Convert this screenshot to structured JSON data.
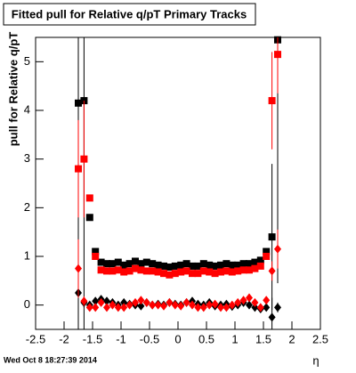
{
  "chart_data": {
    "type": "scatter",
    "title": "Fitted pull for Relative q/pT  Primary Tracks",
    "y_label": "pull for Relative q/pT",
    "x_label": "η",
    "timestamp": "Wed Oct  8 18:27:39 2014",
    "xlim": [
      -2.5,
      2.5
    ],
    "ylim": [
      -0.5,
      5.5
    ],
    "xticks": [
      -2.5,
      -2,
      -1.5,
      -1,
      -0.5,
      0,
      0.5,
      1,
      1.5,
      2,
      2.5
    ],
    "yticks": [
      0,
      1,
      2,
      3,
      4,
      5
    ],
    "x": [
      -1.75,
      -1.65,
      -1.55,
      -1.45,
      -1.35,
      -1.25,
      -1.15,
      -1.05,
      -0.95,
      -0.85,
      -0.75,
      -0.65,
      -0.55,
      -0.45,
      -0.35,
      -0.25,
      -0.15,
      -0.05,
      0.05,
      0.15,
      0.25,
      0.35,
      0.45,
      0.55,
      0.65,
      0.75,
      0.85,
      0.95,
      1.05,
      1.15,
      1.25,
      1.35,
      1.45,
      1.55,
      1.65,
      1.75
    ],
    "series": [
      {
        "marker": "square",
        "color": "#000000",
        "values": [
          4.15,
          4.2,
          1.8,
          1.1,
          0.88,
          0.85,
          0.85,
          0.88,
          0.82,
          0.85,
          0.9,
          0.85,
          0.88,
          0.85,
          0.82,
          0.8,
          0.78,
          0.8,
          0.82,
          0.85,
          0.8,
          0.8,
          0.85,
          0.82,
          0.8,
          0.82,
          0.85,
          0.82,
          0.82,
          0.85,
          0.85,
          0.88,
          0.92,
          1.1,
          1.4,
          5.45
        ],
        "errors": [
          5,
          5,
          0.05,
          0.05,
          0.03,
          0.03,
          0.03,
          0.03,
          0.03,
          0.03,
          0.03,
          0.03,
          0.03,
          0.03,
          0.03,
          0.03,
          0.03,
          0.03,
          0.03,
          0.03,
          0.03,
          0.03,
          0.03,
          0.03,
          0.03,
          0.03,
          0.03,
          0.03,
          0.03,
          0.03,
          0.03,
          0.03,
          0.03,
          0.05,
          1.5,
          5
        ]
      },
      {
        "marker": "square",
        "color": "#ff0000",
        "values": [
          2.8,
          3.0,
          2.2,
          1.0,
          0.72,
          0.7,
          0.7,
          0.72,
          0.68,
          0.7,
          0.75,
          0.72,
          0.7,
          0.7,
          0.68,
          0.65,
          0.62,
          0.65,
          0.68,
          0.7,
          0.65,
          0.65,
          0.7,
          0.68,
          0.65,
          0.68,
          0.7,
          0.68,
          0.7,
          0.72,
          0.72,
          0.75,
          0.8,
          1.0,
          4.2,
          5.15
        ],
        "errors": [
          1,
          1.2,
          0.05,
          0.05,
          0.03,
          0.03,
          0.03,
          0.03,
          0.03,
          0.03,
          0.03,
          0.03,
          0.03,
          0.03,
          0.03,
          0.03,
          0.03,
          0.03,
          0.03,
          0.03,
          0.03,
          0.03,
          0.03,
          0.03,
          0.03,
          0.03,
          0.03,
          0.03,
          0.03,
          0.03,
          0.03,
          0.03,
          0.03,
          0.05,
          1,
          0.8
        ]
      },
      {
        "marker": "diamond",
        "color": "#000000",
        "values": [
          0.25,
          0.05,
          0.0,
          0.08,
          0.12,
          0.08,
          0.05,
          0.0,
          0.05,
          0.02,
          0.0,
          -0.02,
          0.05,
          0.0,
          0.02,
          0.0,
          0.05,
          0.02,
          0.0,
          0.05,
          0.08,
          0.02,
          0.0,
          0.05,
          -0.02,
          0.0,
          0.02,
          -0.03,
          0.0,
          0.05,
          0.0,
          -0.05,
          -0.08,
          -0.05,
          -0.25,
          -0.05
        ],
        "errors": [
          0.6,
          0.1,
          0.03,
          0.03,
          0.03,
          0.03,
          0.03,
          0.03,
          0.03,
          0.03,
          0.03,
          0.03,
          0.03,
          0.03,
          0.03,
          0.03,
          0.03,
          0.03,
          0.03,
          0.03,
          0.03,
          0.03,
          0.03,
          0.03,
          0.03,
          0.03,
          0.03,
          0.03,
          0.03,
          0.03,
          0.03,
          0.03,
          0.03,
          0.03,
          0.4,
          0.1
        ]
      },
      {
        "marker": "diamond",
        "color": "#ff0000",
        "values": [
          0.75,
          0.08,
          -0.05,
          -0.05,
          0.05,
          -0.05,
          0.0,
          -0.05,
          -0.05,
          0.0,
          0.05,
          0.1,
          0.05,
          0.0,
          0.0,
          -0.02,
          0.05,
          0.0,
          -0.02,
          0.05,
          0.0,
          -0.05,
          -0.05,
          0.0,
          0.02,
          -0.05,
          -0.05,
          0.0,
          0.05,
          0.1,
          0.15,
          0.05,
          -0.05,
          0.1,
          0.7,
          1.15
        ],
        "errors": [
          0.6,
          0.1,
          0.03,
          0.03,
          0.03,
          0.03,
          0.03,
          0.03,
          0.03,
          0.03,
          0.03,
          0.03,
          0.03,
          0.03,
          0.03,
          0.03,
          0.03,
          0.03,
          0.03,
          0.03,
          0.03,
          0.03,
          0.03,
          0.03,
          0.03,
          0.03,
          0.03,
          0.03,
          0.03,
          0.03,
          0.03,
          0.03,
          0.03,
          0.03,
          0.2,
          0.4
        ]
      }
    ]
  }
}
